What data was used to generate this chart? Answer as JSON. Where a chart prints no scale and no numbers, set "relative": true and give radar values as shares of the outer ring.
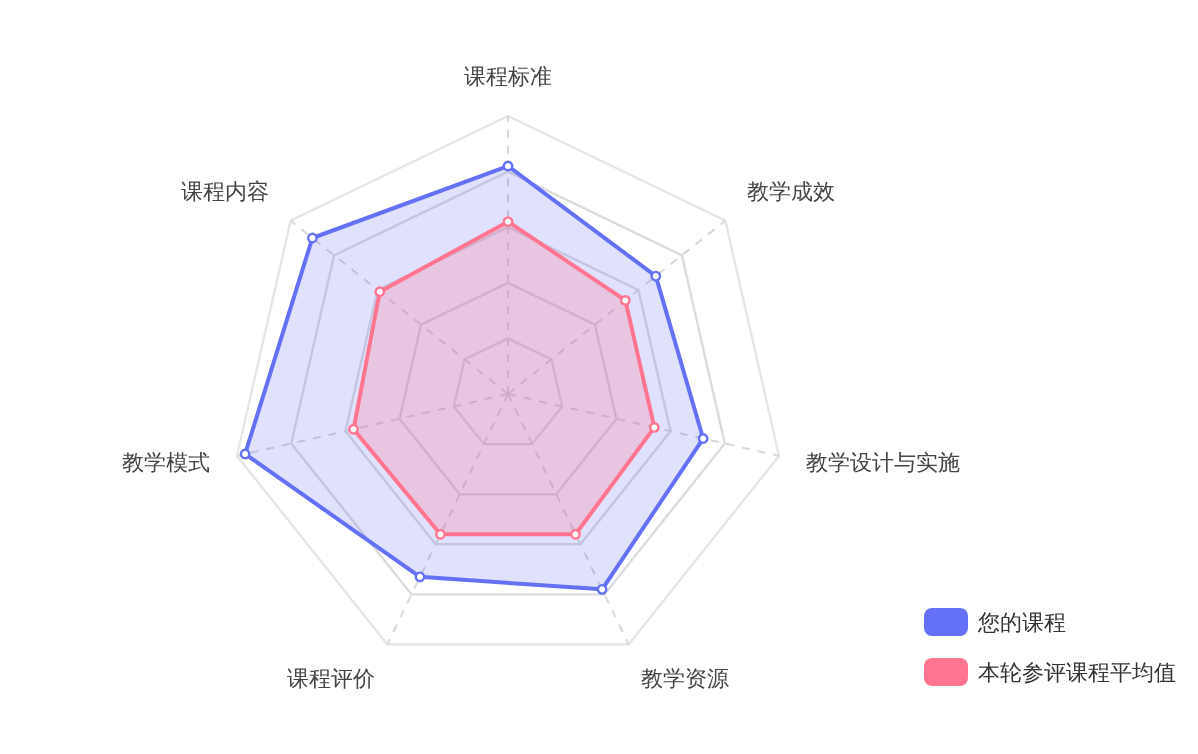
{
  "chart_data": {
    "type": "radar",
    "relative": true,
    "categories": [
      "课程标准",
      "教学成效",
      "教学设计与实施",
      "教学资源",
      "课程评价",
      "教学模式",
      "课程内容"
    ],
    "series": [
      {
        "name": "您的课程",
        "color": "#6470f5",
        "values": [
          0.82,
          0.68,
          0.72,
          0.78,
          0.73,
          0.97,
          0.9
        ]
      },
      {
        "name": "本轮参评课程平均值",
        "color": "#ff7590",
        "values": [
          0.62,
          0.54,
          0.54,
          0.56,
          0.56,
          0.57,
          0.59
        ]
      }
    ],
    "grid": true,
    "legend": "bottom right",
    "marker": "circle",
    "line_style": "solid"
  }
}
